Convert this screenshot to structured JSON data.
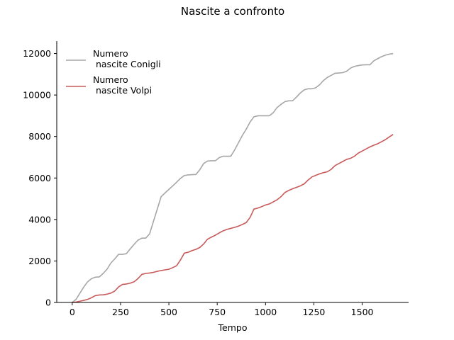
{
  "chart_data": {
    "type": "line",
    "title": "Nascite a confronto",
    "xlabel": "Tempo",
    "ylabel": "",
    "xlim": [
      -80,
      1740
    ],
    "ylim": [
      0,
      12600
    ],
    "xticks": [
      0,
      250,
      500,
      750,
      1000,
      1250,
      1500
    ],
    "yticks": [
      0,
      2000,
      4000,
      6000,
      8000,
      10000,
      12000
    ],
    "grid": false,
    "legend_position": "top-left",
    "series": [
      {
        "name": "Numero\n nascite Conigli",
        "color": "#a6a6a6",
        "x": [
          0,
          20,
          40,
          60,
          80,
          100,
          120,
          140,
          160,
          180,
          200,
          220,
          240,
          260,
          280,
          300,
          320,
          340,
          360,
          380,
          400,
          420,
          440,
          460,
          480,
          500,
          520,
          540,
          560,
          580,
          600,
          620,
          640,
          660,
          680,
          700,
          720,
          740,
          760,
          780,
          800,
          820,
          840,
          860,
          880,
          900,
          920,
          940,
          960,
          980,
          1000,
          1020,
          1040,
          1060,
          1080,
          1100,
          1120,
          1140,
          1160,
          1180,
          1200,
          1220,
          1240,
          1260,
          1280,
          1300,
          1320,
          1340,
          1360,
          1380,
          1400,
          1420,
          1440,
          1460,
          1480,
          1500,
          1520,
          1540,
          1560,
          1580,
          1600,
          1620,
          1640,
          1660
        ],
        "y": [
          0,
          150,
          450,
          750,
          1000,
          1150,
          1220,
          1230,
          1400,
          1600,
          1900,
          2100,
          2320,
          2320,
          2350,
          2580,
          2800,
          3000,
          3100,
          3100,
          3300,
          3900,
          4500,
          5100,
          5280,
          5450,
          5620,
          5800,
          5980,
          6120,
          6150,
          6160,
          6170,
          6400,
          6700,
          6820,
          6830,
          6830,
          6980,
          7050,
          7050,
          7050,
          7350,
          7700,
          8050,
          8350,
          8700,
          8950,
          9000,
          9000,
          9000,
          9000,
          9150,
          9400,
          9550,
          9680,
          9720,
          9720,
          9900,
          10100,
          10250,
          10300,
          10300,
          10350,
          10500,
          10700,
          10850,
          10950,
          11050,
          11060,
          11080,
          11150,
          11300,
          11380,
          11420,
          11450,
          11460,
          11460,
          11650,
          11750,
          11850,
          11920,
          11970,
          12000
        ]
      },
      {
        "name": "Numero\n nascite Volpi",
        "color": "#c85a5a",
        "x": [
          0,
          20,
          40,
          60,
          80,
          100,
          120,
          140,
          160,
          180,
          200,
          220,
          240,
          260,
          280,
          300,
          320,
          340,
          360,
          380,
          400,
          420,
          440,
          460,
          480,
          500,
          520,
          540,
          560,
          580,
          600,
          620,
          640,
          660,
          680,
          700,
          720,
          740,
          760,
          780,
          800,
          820,
          840,
          860,
          880,
          900,
          920,
          940,
          960,
          980,
          1000,
          1020,
          1040,
          1060,
          1080,
          1100,
          1120,
          1140,
          1160,
          1180,
          1200,
          1220,
          1240,
          1260,
          1280,
          1300,
          1320,
          1340,
          1360,
          1380,
          1400,
          1420,
          1440,
          1460,
          1480,
          1500,
          1520,
          1540,
          1560,
          1580,
          1600,
          1620,
          1640,
          1660
        ],
        "y": [
          0,
          20,
          60,
          100,
          150,
          230,
          330,
          360,
          370,
          400,
          450,
          550,
          750,
          870,
          890,
          930,
          1000,
          1150,
          1350,
          1400,
          1420,
          1450,
          1500,
          1540,
          1570,
          1600,
          1680,
          1770,
          2050,
          2380,
          2420,
          2500,
          2560,
          2650,
          2820,
          3050,
          3150,
          3240,
          3350,
          3450,
          3520,
          3570,
          3620,
          3680,
          3760,
          3850,
          4100,
          4500,
          4550,
          4620,
          4700,
          4750,
          4850,
          4950,
          5100,
          5300,
          5400,
          5480,
          5550,
          5620,
          5720,
          5900,
          6050,
          6130,
          6200,
          6260,
          6300,
          6420,
          6600,
          6700,
          6800,
          6900,
          6950,
          7050,
          7200,
          7300,
          7400,
          7500,
          7580,
          7650,
          7750,
          7850,
          7980,
          8100
        ]
      }
    ]
  }
}
